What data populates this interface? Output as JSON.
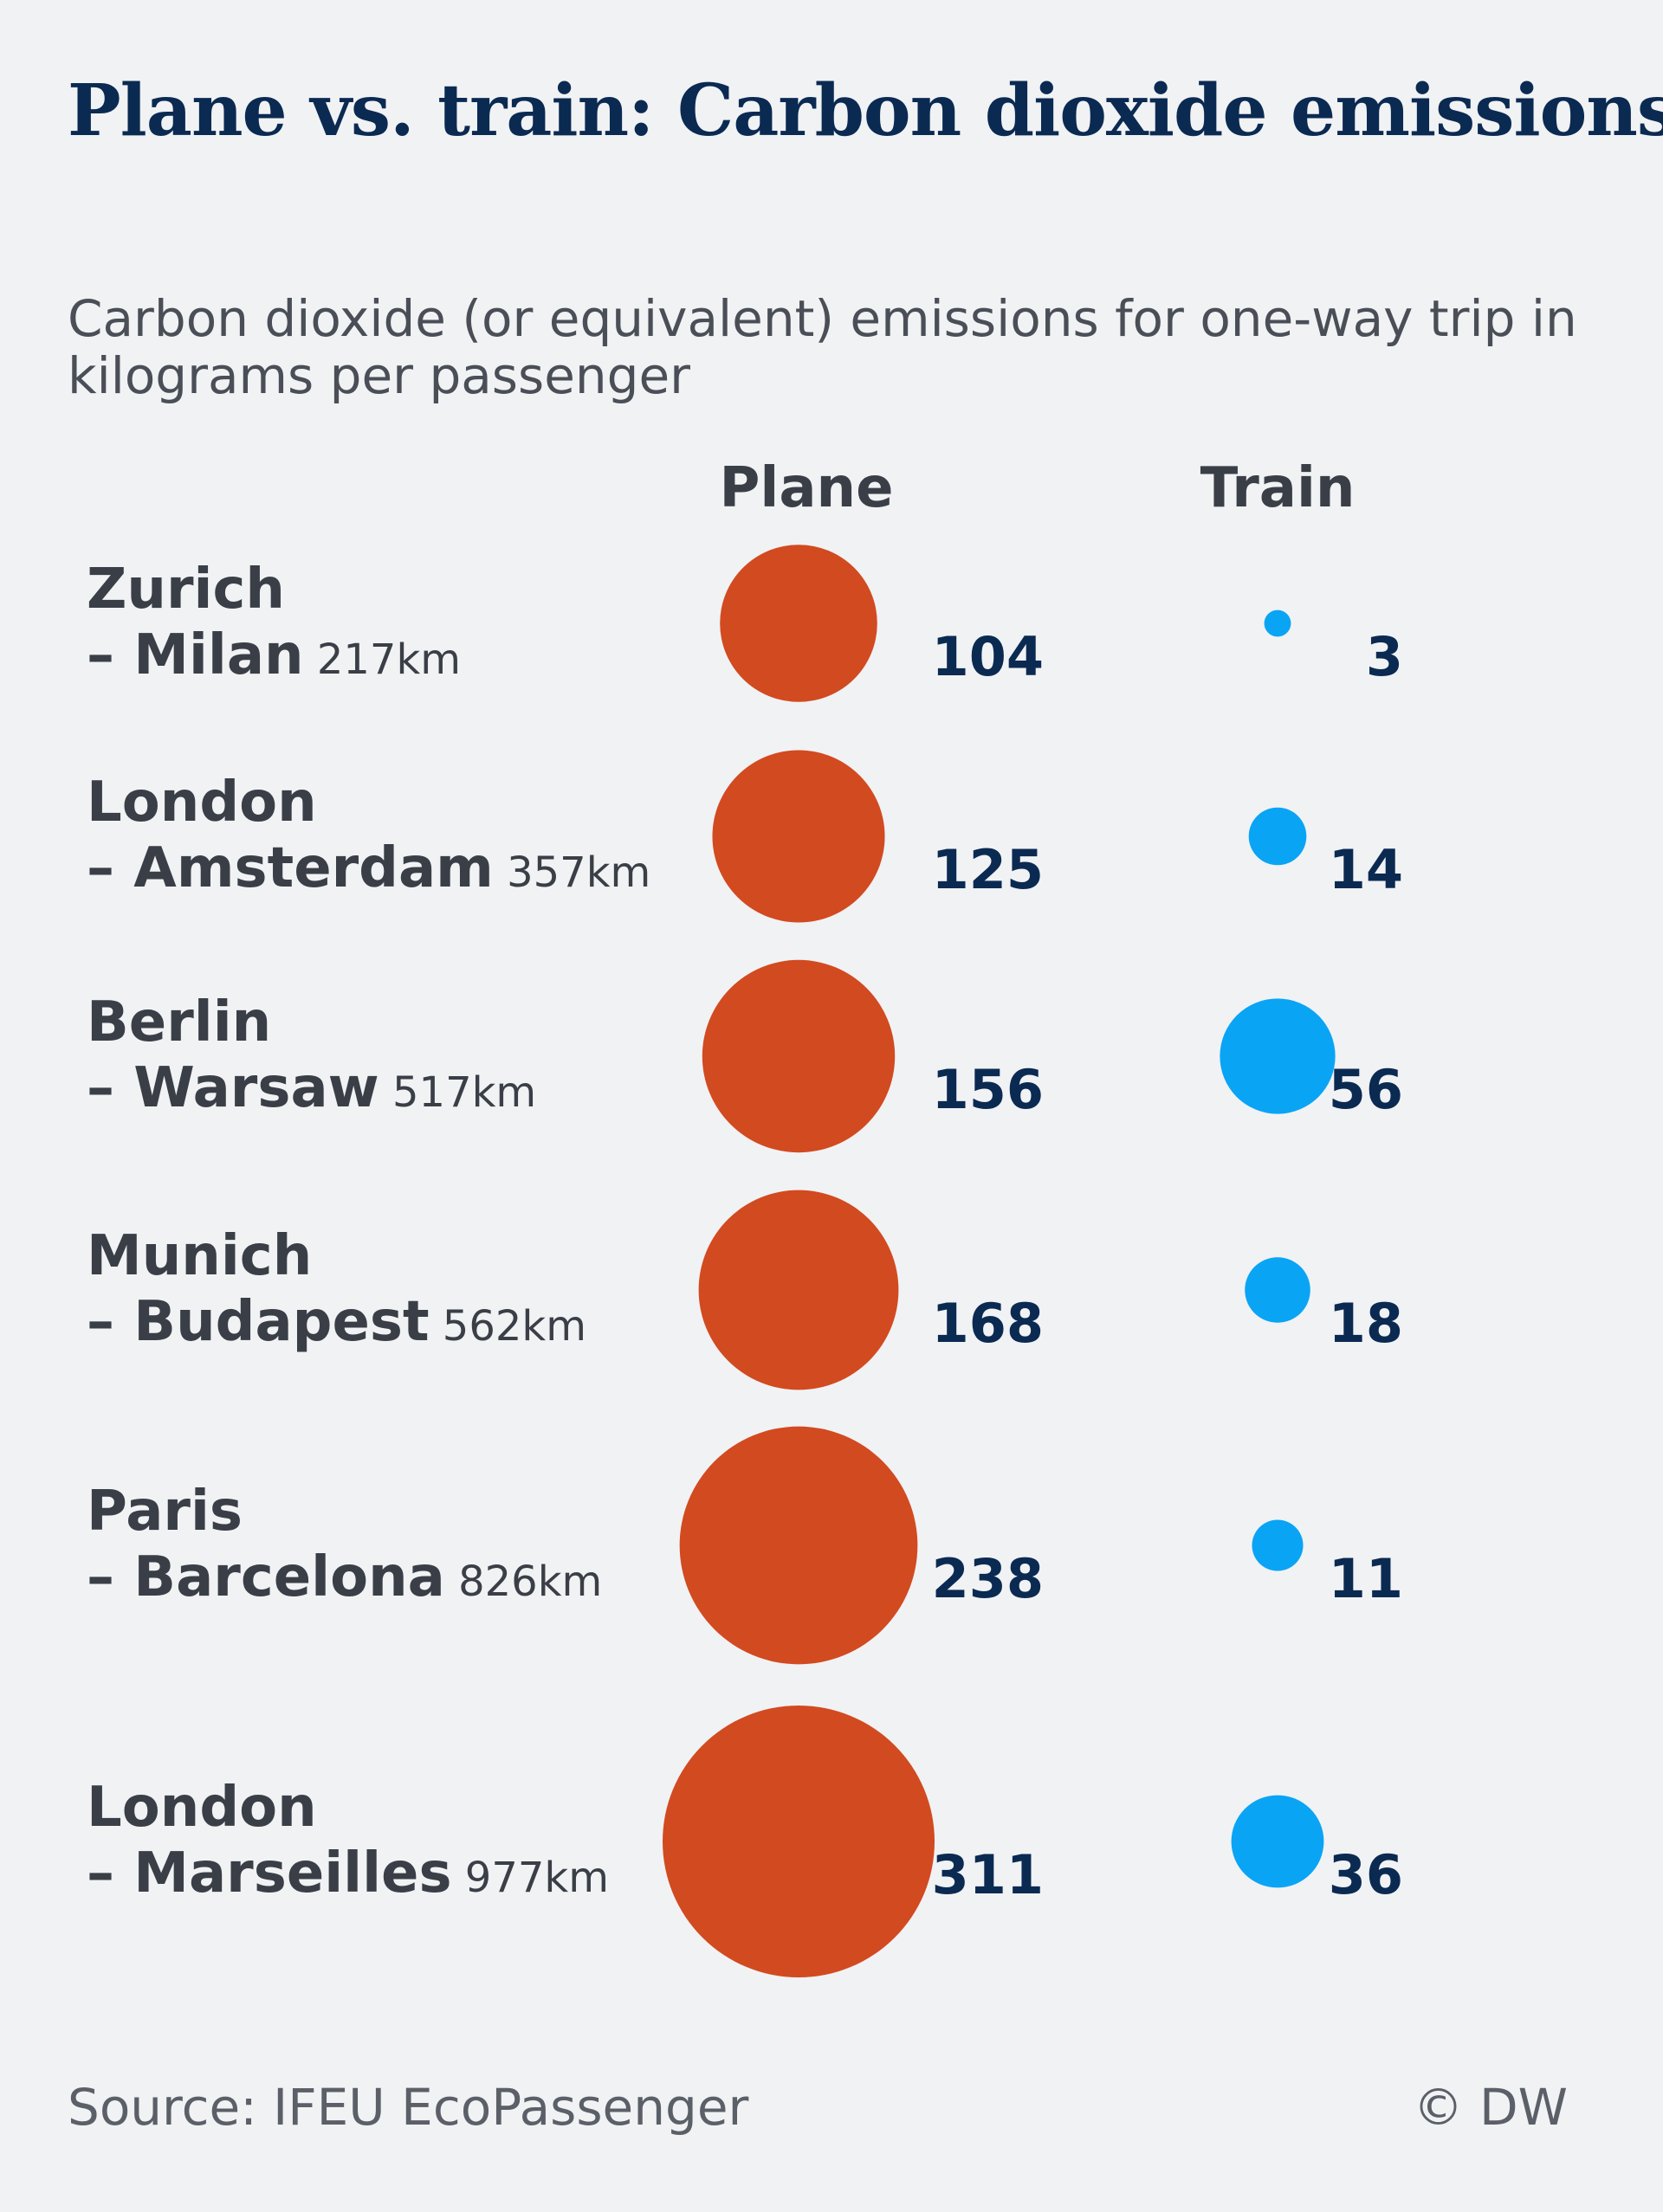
{
  "title": "Plane vs. train: Carbon dioxide emissions",
  "subtitle": "Carbon dioxide (or equivalent) emissions for one-way trip in kilograms per passenger",
  "source": "Source: IFEU EcoPassenger",
  "copyright": "© DW",
  "colors": {
    "plane": "#d24a20",
    "train": "#0aa4f5",
    "title": "#0b2a52",
    "text": "#3a3f47"
  },
  "chart_data": {
    "type": "bubble",
    "columns": [
      "Plane",
      "Train"
    ],
    "routes": [
      {
        "from": "Zurich",
        "to": "– Milan",
        "distance": "217km",
        "plane": 104,
        "train": 3
      },
      {
        "from": "London",
        "to": "– Amsterdam",
        "distance": "357km",
        "plane": 125,
        "train": 14
      },
      {
        "from": "Berlin",
        "to": "– Warsaw",
        "distance": "517km",
        "plane": 156,
        "train": 56
      },
      {
        "from": "Munich",
        "to": " – Budapest",
        "distance": "562km",
        "plane": 168,
        "train": 18
      },
      {
        "from": "Paris",
        "to": "– Barcelona",
        "distance": "826km",
        "plane": 238,
        "train": 11
      },
      {
        "from": "London",
        "to": "– Marseilles",
        "distance": "977km",
        "plane": 311,
        "train": 36
      }
    ]
  }
}
